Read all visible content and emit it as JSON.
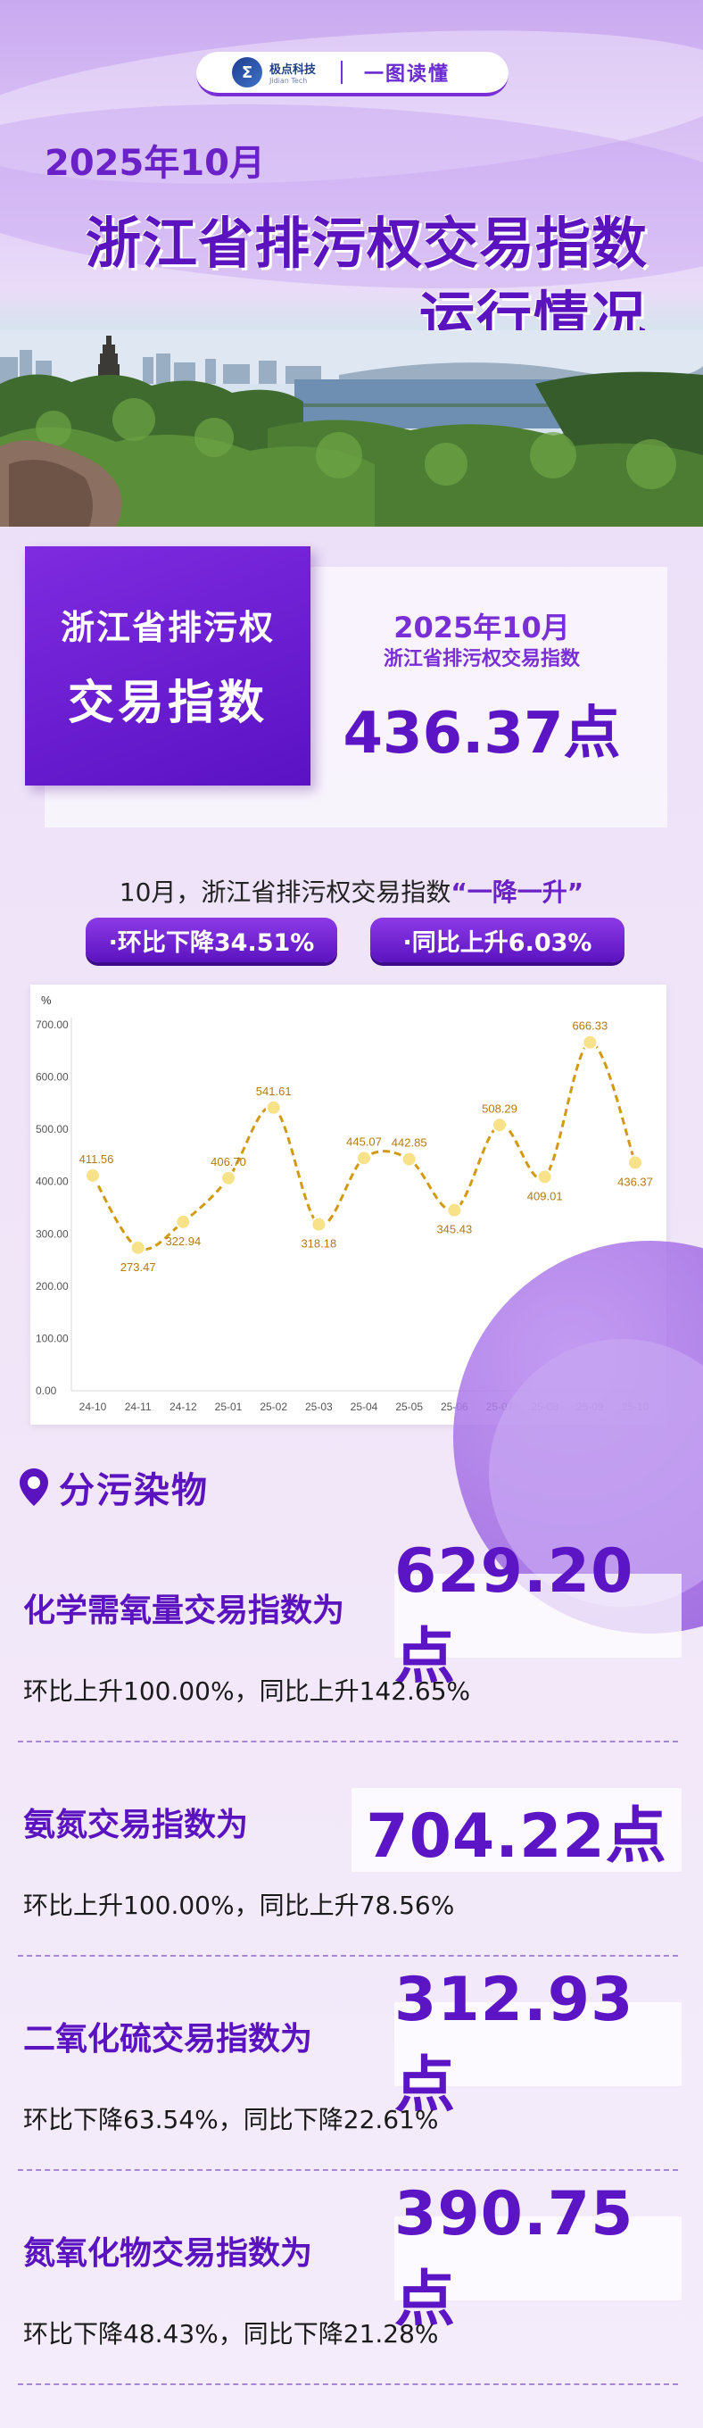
{
  "brand": {
    "mark": "Σ",
    "name_cn": "极点科技",
    "name_en": "Jidian Tech",
    "slogan": "一图读懂"
  },
  "header": {
    "date": "2025年10月",
    "title_line1": "浙江省排污权交易指数",
    "title_line2": "运行情况"
  },
  "index_card": {
    "label_line1": "浙江省排污权",
    "label_line2": "交易指数",
    "date": "2025年10月",
    "subtitle": "浙江省排污权交易指数",
    "value": "436.37点"
  },
  "summary": {
    "text_prefix": "10月，浙江省排污权交易指数",
    "quote": "“一降一升”",
    "mom": "·环比下降34.51%",
    "yoy": "·同比上升6.03%"
  },
  "chart_data": {
    "type": "line",
    "ylabel": "%",
    "ylim": [
      0,
      700
    ],
    "yticks": [
      "0.00",
      "100.00",
      "200.00",
      "300.00",
      "400.00",
      "500.00",
      "600.00",
      "700.00"
    ],
    "categories": [
      "24-10",
      "24-11",
      "24-12",
      "25-01",
      "25-02",
      "25-03",
      "25-04",
      "25-05",
      "25-06",
      "25-07",
      "25-08",
      "25-09",
      "25-10"
    ],
    "values": [
      411.56,
      273.47,
      322.94,
      406.7,
      541.61,
      318.18,
      445.07,
      442.85,
      345.43,
      508.29,
      409.01,
      666.33,
      436.37
    ],
    "value_labels": [
      "411.56",
      "273.47",
      "322.94",
      "406.70",
      "541.61",
      "318.18",
      "445.07",
      "442.85",
      "345.43",
      "508.29",
      "409.01",
      "666.33",
      "436.37"
    ],
    "grid": false,
    "line_color": "#d19a12",
    "marker_color": "#f7e28a"
  },
  "section": {
    "title": "分污染物"
  },
  "pollutants": [
    {
      "name": "化学需氧量交易指数为",
      "value": "629.20点",
      "desc": "环比上升100.00%，同比上升142.65%"
    },
    {
      "name": "氨氮交易指数为",
      "value": "704.22点",
      "desc": "环比上升100.00%，同比上升78.56%"
    },
    {
      "name": "二氧化硫交易指数为",
      "value": "312.93点",
      "desc": "环比下降63.54%，同比下降22.61%"
    },
    {
      "name": "氮氧化物交易指数为",
      "value": "390.75点",
      "desc": "环比下降48.43%，同比下降21.28%"
    }
  ],
  "colors": {
    "primary": "#5b13c0",
    "accent": "#7a2fd6",
    "line": "#d19a12"
  }
}
